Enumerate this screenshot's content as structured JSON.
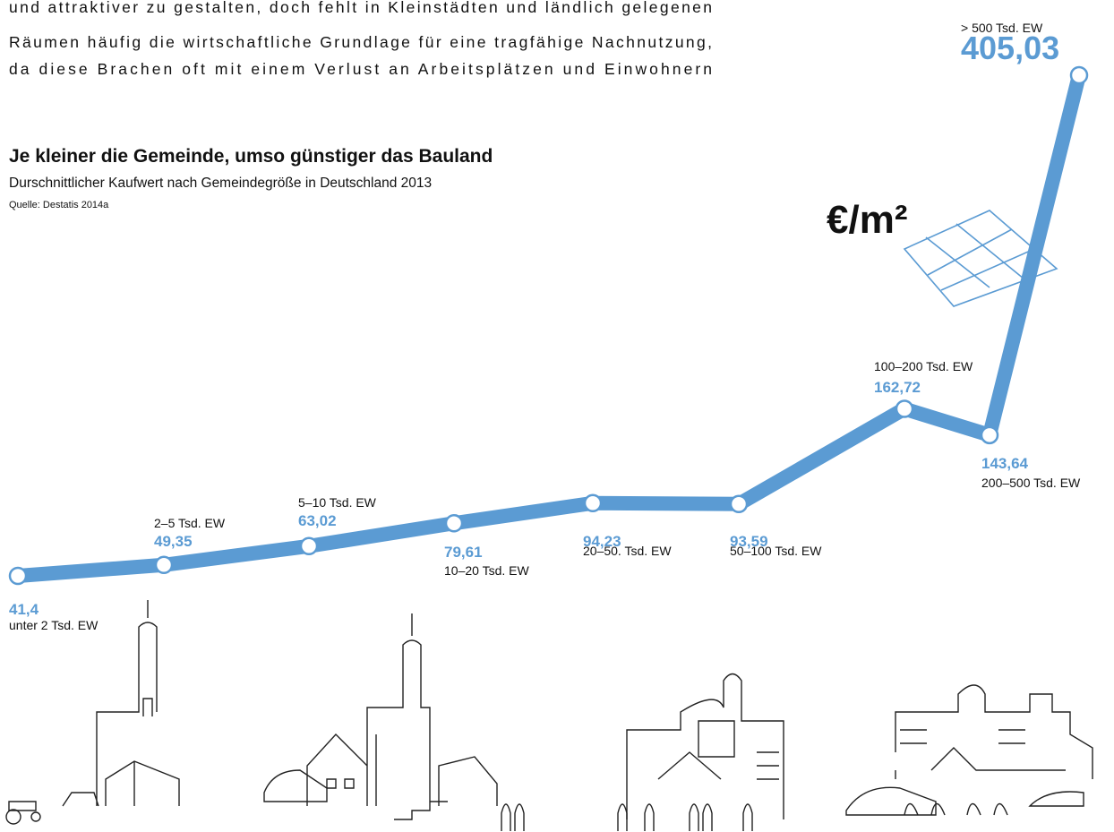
{
  "intro_text": [
    "und attraktiver zu gestalten, doch fehlt in Kleinstädten und ländlich gelegenen",
    "Räumen häufig die wirtschaftliche Grundlage für eine tragfähige Nachnutzung,",
    "da diese Brachen oft mit einem Verlust an Arbeitsplätzen und  Einwohnern"
  ],
  "chart_data": {
    "type": "line",
    "title": "Je kleiner die Gemeinde, umso günstiger das Bauland",
    "subtitle": "Durschnittlicher Kaufwert nach Gemeindegröße in Deutschland 2013",
    "source": "Quelle: Destatis 2014a",
    "unit_label": "€/m²",
    "color": "#5b9bd3",
    "categories": [
      "unter 2 Tsd. EW",
      "2–5 Tsd. EW",
      "5–10 Tsd. EW",
      "10–20 Tsd. EW",
      "20–50. Tsd. EW",
      "50–100 Tsd. EW",
      "100–200 Tsd. EW",
      "200–500 Tsd. EW",
      "> 500 Tsd. EW"
    ],
    "values": [
      41.4,
      49.35,
      63.02,
      79.61,
      94.23,
      93.59,
      162.72,
      143.64,
      405.03
    ],
    "value_labels": [
      "41,4",
      "49,35",
      "63,02",
      "79,61",
      "94,23",
      "93,59",
      "162,72",
      "143,64",
      "405,03"
    ]
  }
}
